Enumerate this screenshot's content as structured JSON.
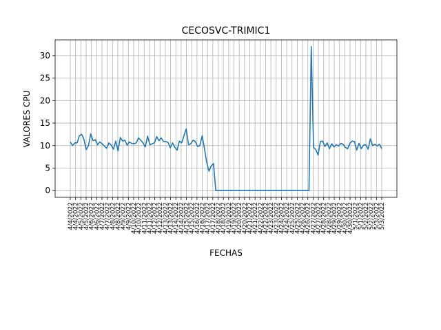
{
  "chart_data": {
    "type": "line",
    "title": "CECOSVC-TRIMIC1",
    "xlabel": "FECHAS",
    "ylabel": "VALORES CPU",
    "ylim": [
      -1.5,
      33.5
    ],
    "yticks": [
      0,
      5,
      10,
      15,
      20,
      25,
      30
    ],
    "grid": true,
    "line_color": "#1f77b4",
    "xtick_labels": [
      "4/4/2022",
      "4/4/2022",
      "4/5/2022",
      "4/5/2022",
      "4/6/2022",
      "4/6/2022",
      "4/7/2022",
      "4/7/2022",
      "4/8/2022",
      "4/8/2022",
      "4/9/2022",
      "4/9/2022",
      "4/10/2022",
      "4/10/2022",
      "4/11/2022",
      "4/11/2022",
      "4/12/2022",
      "4/12/2022",
      "4/13/2022",
      "4/13/2022",
      "4/14/2022",
      "4/14/2022",
      "4/15/2022",
      "4/15/2022",
      "4/16/2022",
      "4/16/2022",
      "4/17/2022",
      "4/17/2022",
      "4/18/2022",
      "4/18/2022",
      "4/19/2022",
      "4/19/2022",
      "4/20/2022",
      "4/20/2022",
      "4/21/2022",
      "4/21/2022",
      "4/22/2022",
      "4/22/2022",
      "4/23/2022",
      "4/23/2022",
      "4/24/2022",
      "4/24/2022",
      "4/25/2022",
      "4/25/2022",
      "4/26/2022",
      "4/26/2022",
      "4/27/2022",
      "4/27/2022",
      "4/28/2022",
      "4/28/2022",
      "4/29/2022",
      "4/29/2022",
      "4/30/2022",
      "4/30/2022",
      "5/1/2022",
      "5/1/2022",
      "5/2/2022",
      "5/2/2022",
      "5/3/2022",
      "5/3/2022"
    ],
    "values": [
      10.8,
      10.0,
      10.6,
      10.6,
      12.2,
      12.5,
      11.4,
      9.1,
      10.0,
      12.6,
      11.1,
      11.3,
      10.2,
      10.8,
      10.4,
      9.9,
      9.4,
      10.6,
      10.1,
      9.2,
      11.0,
      8.8,
      11.8,
      11.0,
      11.2,
      10.1,
      10.8,
      10.5,
      10.4,
      10.6,
      11.7,
      11.2,
      10.6,
      9.7,
      12.1,
      10.2,
      10.4,
      10.6,
      12.0,
      11.1,
      11.7,
      10.9,
      10.9,
      10.7,
      9.5,
      10.6,
      9.6,
      9.0,
      11.0,
      10.6,
      12.2,
      13.7,
      10.2,
      10.4,
      11.2,
      10.9,
      9.8,
      10.0,
      12.2,
      9.4,
      6.3,
      4.3,
      5.5,
      6.0,
      0,
      0,
      0,
      0,
      0,
      0,
      0,
      0,
      0,
      0,
      0,
      0,
      0,
      0,
      0,
      0,
      0,
      0,
      0,
      0,
      0,
      0,
      0,
      0,
      0,
      0,
      0,
      0,
      0,
      0,
      0,
      0,
      0,
      0,
      0,
      0,
      0,
      0,
      0,
      0,
      0,
      0,
      32.0,
      9.6,
      9.1,
      7.9,
      10.9,
      11.0,
      9.8,
      10.6,
      9.3,
      10.4,
      9.7,
      10.2,
      9.9,
      10.5,
      10.3,
      9.6,
      9.3,
      10.5,
      11.0,
      10.9,
      9.0,
      10.5,
      9.3,
      10.1,
      10.2,
      9.2,
      11.5,
      10.0,
      10.3,
      9.9,
      10.3,
      9.3
    ]
  }
}
